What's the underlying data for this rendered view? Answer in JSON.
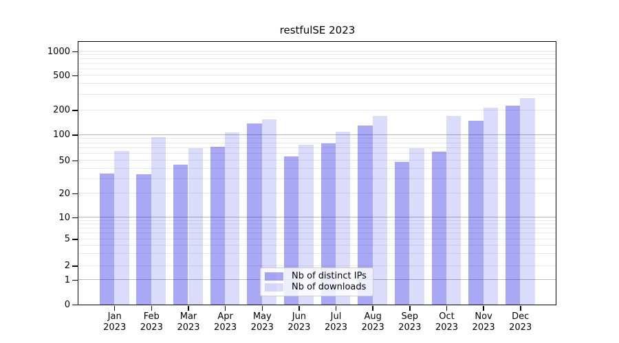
{
  "chart_data": {
    "type": "bar",
    "title": "restfulSE 2023",
    "categories": [
      "Jan",
      "Feb",
      "Mar",
      "Apr",
      "May",
      "Jun",
      "Jul",
      "Aug",
      "Sep",
      "Oct",
      "Nov",
      "Dec"
    ],
    "x_sublabel": "2023",
    "series": [
      {
        "name": "Nb of distinct IPs",
        "color": "rgba(0,0,225,0.34)",
        "values": [
          35,
          34,
          45,
          72,
          138,
          56,
          79,
          129,
          48,
          64,
          148,
          225
        ]
      },
      {
        "name": "Nb of downloads",
        "color": "rgba(0,0,225,0.14)",
        "values": [
          65,
          93,
          70,
          108,
          154,
          77,
          110,
          170,
          70,
          170,
          212,
          273
        ]
      }
    ],
    "yticks": [
      0,
      1,
      2,
      5,
      10,
      20,
      50,
      100,
      200,
      500,
      1000
    ],
    "ylim": [
      0,
      1000
    ],
    "yscale": "symlog",
    "grid": "on",
    "legend_position": "lower center",
    "legend_labels": [
      "Nb of distinct IPs",
      "Nb of downloads"
    ]
  },
  "colors": {
    "background": "#ffffff",
    "bar_distinct_ips": "rgba(0,0,225,0.34)",
    "bar_downloads": "rgba(0,0,225,0.14)",
    "grid_major": "#b9b9b9",
    "grid_minor": "#e8e8e8",
    "spine": "#000000",
    "legend_border": "#cccccc",
    "text": "#000000"
  }
}
